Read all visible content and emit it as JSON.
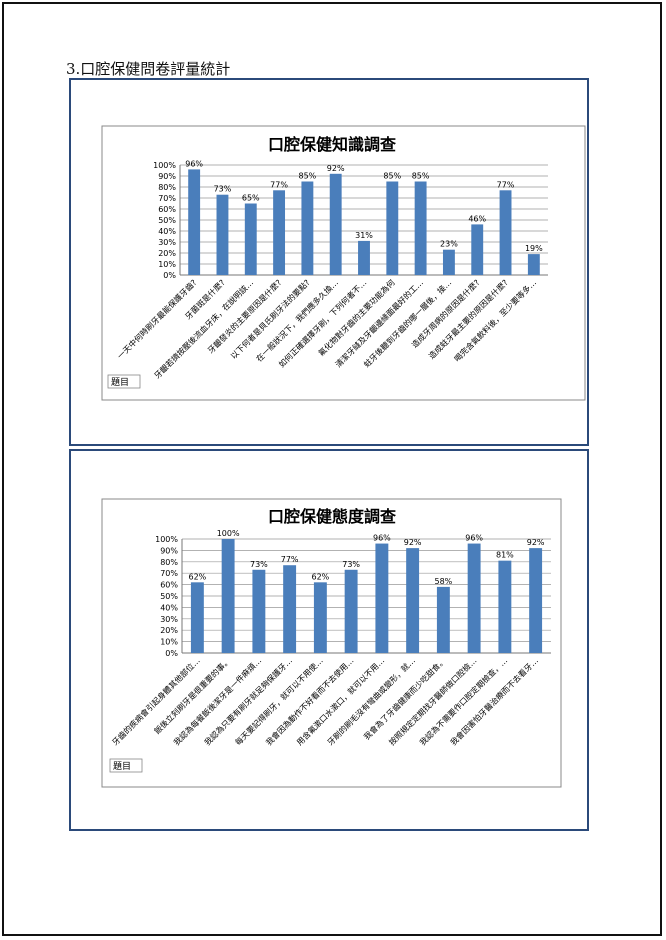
{
  "page": {
    "heading": "3.口腔保健問卷評量統計"
  },
  "chart_data": [
    {
      "type": "bar",
      "title": "口腔保健知識調查",
      "footnote": "題目",
      "ylim": [
        0,
        100
      ],
      "yticks": [
        "0%",
        "10%",
        "20%",
        "30%",
        "40%",
        "50%",
        "60%",
        "70%",
        "80%",
        "90%",
        "100%"
      ],
      "grid": true,
      "bar_color": "#4a7ebb",
      "categories": [
        "一天中何時刷牙最能保護牙齒?",
        "牙菌斑是什麼?",
        "牙齦若擠按壓後流血牙床，在說明該…",
        "牙齦發炎的主要原因是什麼?",
        "以下何者是貝氏刷牙法的要點?",
        "在一般狀況下，我們應多久換…",
        "如何正確選擇牙刷，下列何者不…",
        "氟化物對牙齒的主要功能為何",
        "清潔牙縫及牙齦邊緣面最好的工…",
        "蛀牙後聽到牙齒的哪一層後，接…",
        "造成牙周病的原因是什麼?",
        "造成蛀牙最主要的原因是什麼?",
        "喝完含氣飲料後，至少要等多…"
      ],
      "values": [
        96,
        73,
        65,
        77,
        85,
        92,
        31,
        85,
        85,
        23,
        46,
        77,
        19
      ],
      "labels": [
        "96%",
        "73%",
        "65%",
        "77%",
        "85%",
        "92%",
        "31%",
        "85%",
        "85%",
        "23%",
        "46%",
        "77%",
        "19%"
      ]
    },
    {
      "type": "bar",
      "title": "口腔保健態度調查",
      "footnote": "題目",
      "ylim": [
        0,
        100
      ],
      "yticks": [
        "0%",
        "10%",
        "20%",
        "30%",
        "40%",
        "50%",
        "60%",
        "70%",
        "80%",
        "90%",
        "100%"
      ],
      "grid": true,
      "bar_color": "#4a7ebb",
      "categories": [
        "牙齒的疾病會引起身體其他部位…",
        "飯後立刻刷牙是很重要的事。",
        "我認為每餐飯後潔牙是一件麻煩…",
        "我認為只要有刷牙就足夠保護牙…",
        "每天要記得刷牙，就可以不用使…",
        "我會因為動作不好看而不去使用…",
        "用含氟漱口水漱口，就可以不用…",
        "牙刷的刷毛沒有彎曲或變形，就…",
        "我會為了牙齒健康而少吃甜食。",
        "按照規定定期找牙醫師做口腔檢…",
        "我認為不需要作口腔定期檢查，…",
        "我會因害怕牙醫治療而不去看牙…"
      ],
      "values": [
        62,
        100,
        73,
        77,
        62,
        73,
        96,
        92,
        58,
        96,
        81,
        92
      ],
      "labels": [
        "62%",
        "100%",
        "73%",
        "77%",
        "62%",
        "73%",
        "96%",
        "92%",
        "58%",
        "96%",
        "81%",
        "92%"
      ]
    }
  ]
}
